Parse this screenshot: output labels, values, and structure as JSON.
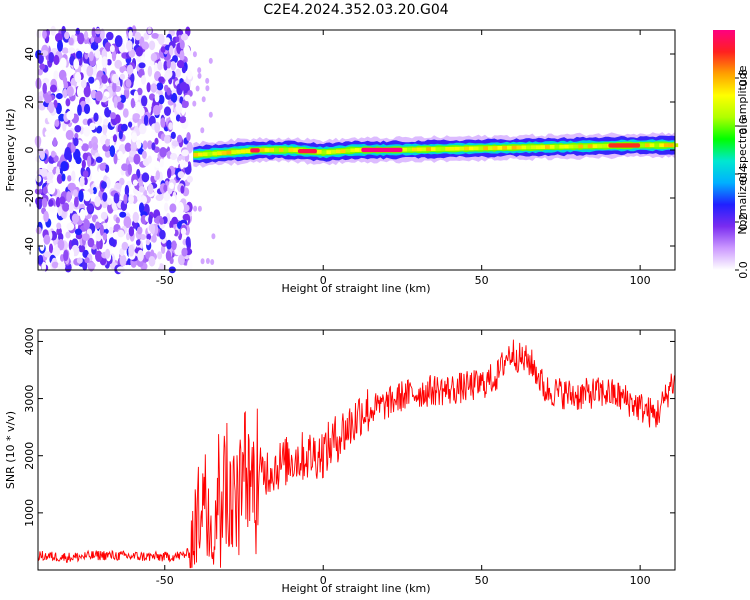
{
  "title": "C2E4.2024.352.03.20.G04",
  "chart_data": [
    {
      "type": "heatmap",
      "xlabel": "Height of straight line (km)",
      "ylabel": "Frequency (Hz)",
      "xlim": [
        -90,
        111
      ],
      "ylim": [
        -50,
        50
      ],
      "xticks": [
        -50,
        0,
        50,
        100
      ],
      "yticks": [
        -40,
        -20,
        0,
        20,
        40
      ],
      "colorbar": {
        "label": "Normalized spectral amplitude",
        "range": [
          0,
          1
        ],
        "ticks": [
          "0.0",
          "0.2",
          "0.4",
          "0.6",
          "0.8"
        ],
        "colormap": [
          "#ffffff",
          "#cc99ff",
          "#7a2cf0",
          "#2020ff",
          "#00b0ff",
          "#00e8d0",
          "#00ff00",
          "#b0ff00",
          "#ffff00",
          "#ffa000",
          "#ff2020",
          "#ff0080"
        ]
      },
      "noise_region_x": [
        -90,
        -42
      ],
      "signal_band": {
        "x": [
          -41,
          -35,
          -20,
          -10,
          0,
          10,
          20,
          40,
          60,
          80,
          100,
          111
        ],
        "center_hz": [
          -2,
          -1.5,
          0,
          0,
          -1,
          0,
          0,
          0.5,
          1,
          1.5,
          2,
          2
        ],
        "peak_segments": [
          {
            "x": [
              -23,
              -20
            ],
            "amp": 0.95
          },
          {
            "x": [
              -8,
              -2
            ],
            "amp": 0.95
          },
          {
            "x": [
              12,
              25
            ],
            "amp": 1.0
          },
          {
            "x": [
              90,
              100
            ],
            "amp": 0.9
          }
        ]
      }
    },
    {
      "type": "line",
      "xlabel": "Height of straight line (km)",
      "ylabel": "SNR (10 * v/v)",
      "xlim": [
        -90,
        111
      ],
      "ylim": [
        0,
        4200
      ],
      "xticks": [
        -50,
        0,
        50,
        100
      ],
      "yticks": [
        1000,
        2000,
        3000,
        4000
      ],
      "series": [
        {
          "color": "#ff0000",
          "x": [
            -90,
            -80,
            -70,
            -60,
            -50,
            -45,
            -42,
            -40,
            -38,
            -35,
            -32,
            -30,
            -28,
            -25,
            -20,
            -15,
            -10,
            -5,
            0,
            5,
            10,
            12,
            15,
            20,
            25,
            30,
            35,
            40,
            45,
            50,
            55,
            58,
            60,
            62,
            65,
            67,
            70,
            75,
            80,
            85,
            90,
            95,
            100,
            105,
            108,
            110,
            111
          ],
          "values": [
            250,
            220,
            260,
            240,
            230,
            250,
            300,
            900,
            1400,
            1000,
            1700,
            1300,
            1200,
            1500,
            1700,
            1800,
            1950,
            2000,
            2050,
            2350,
            2600,
            2800,
            2800,
            2900,
            3050,
            3100,
            3150,
            3150,
            3200,
            3250,
            3400,
            3750,
            3800,
            3700,
            3650,
            3500,
            3150,
            3100,
            3050,
            3100,
            3100,
            3000,
            2850,
            2700,
            3000,
            3300,
            3250
          ]
        }
      ]
    }
  ]
}
